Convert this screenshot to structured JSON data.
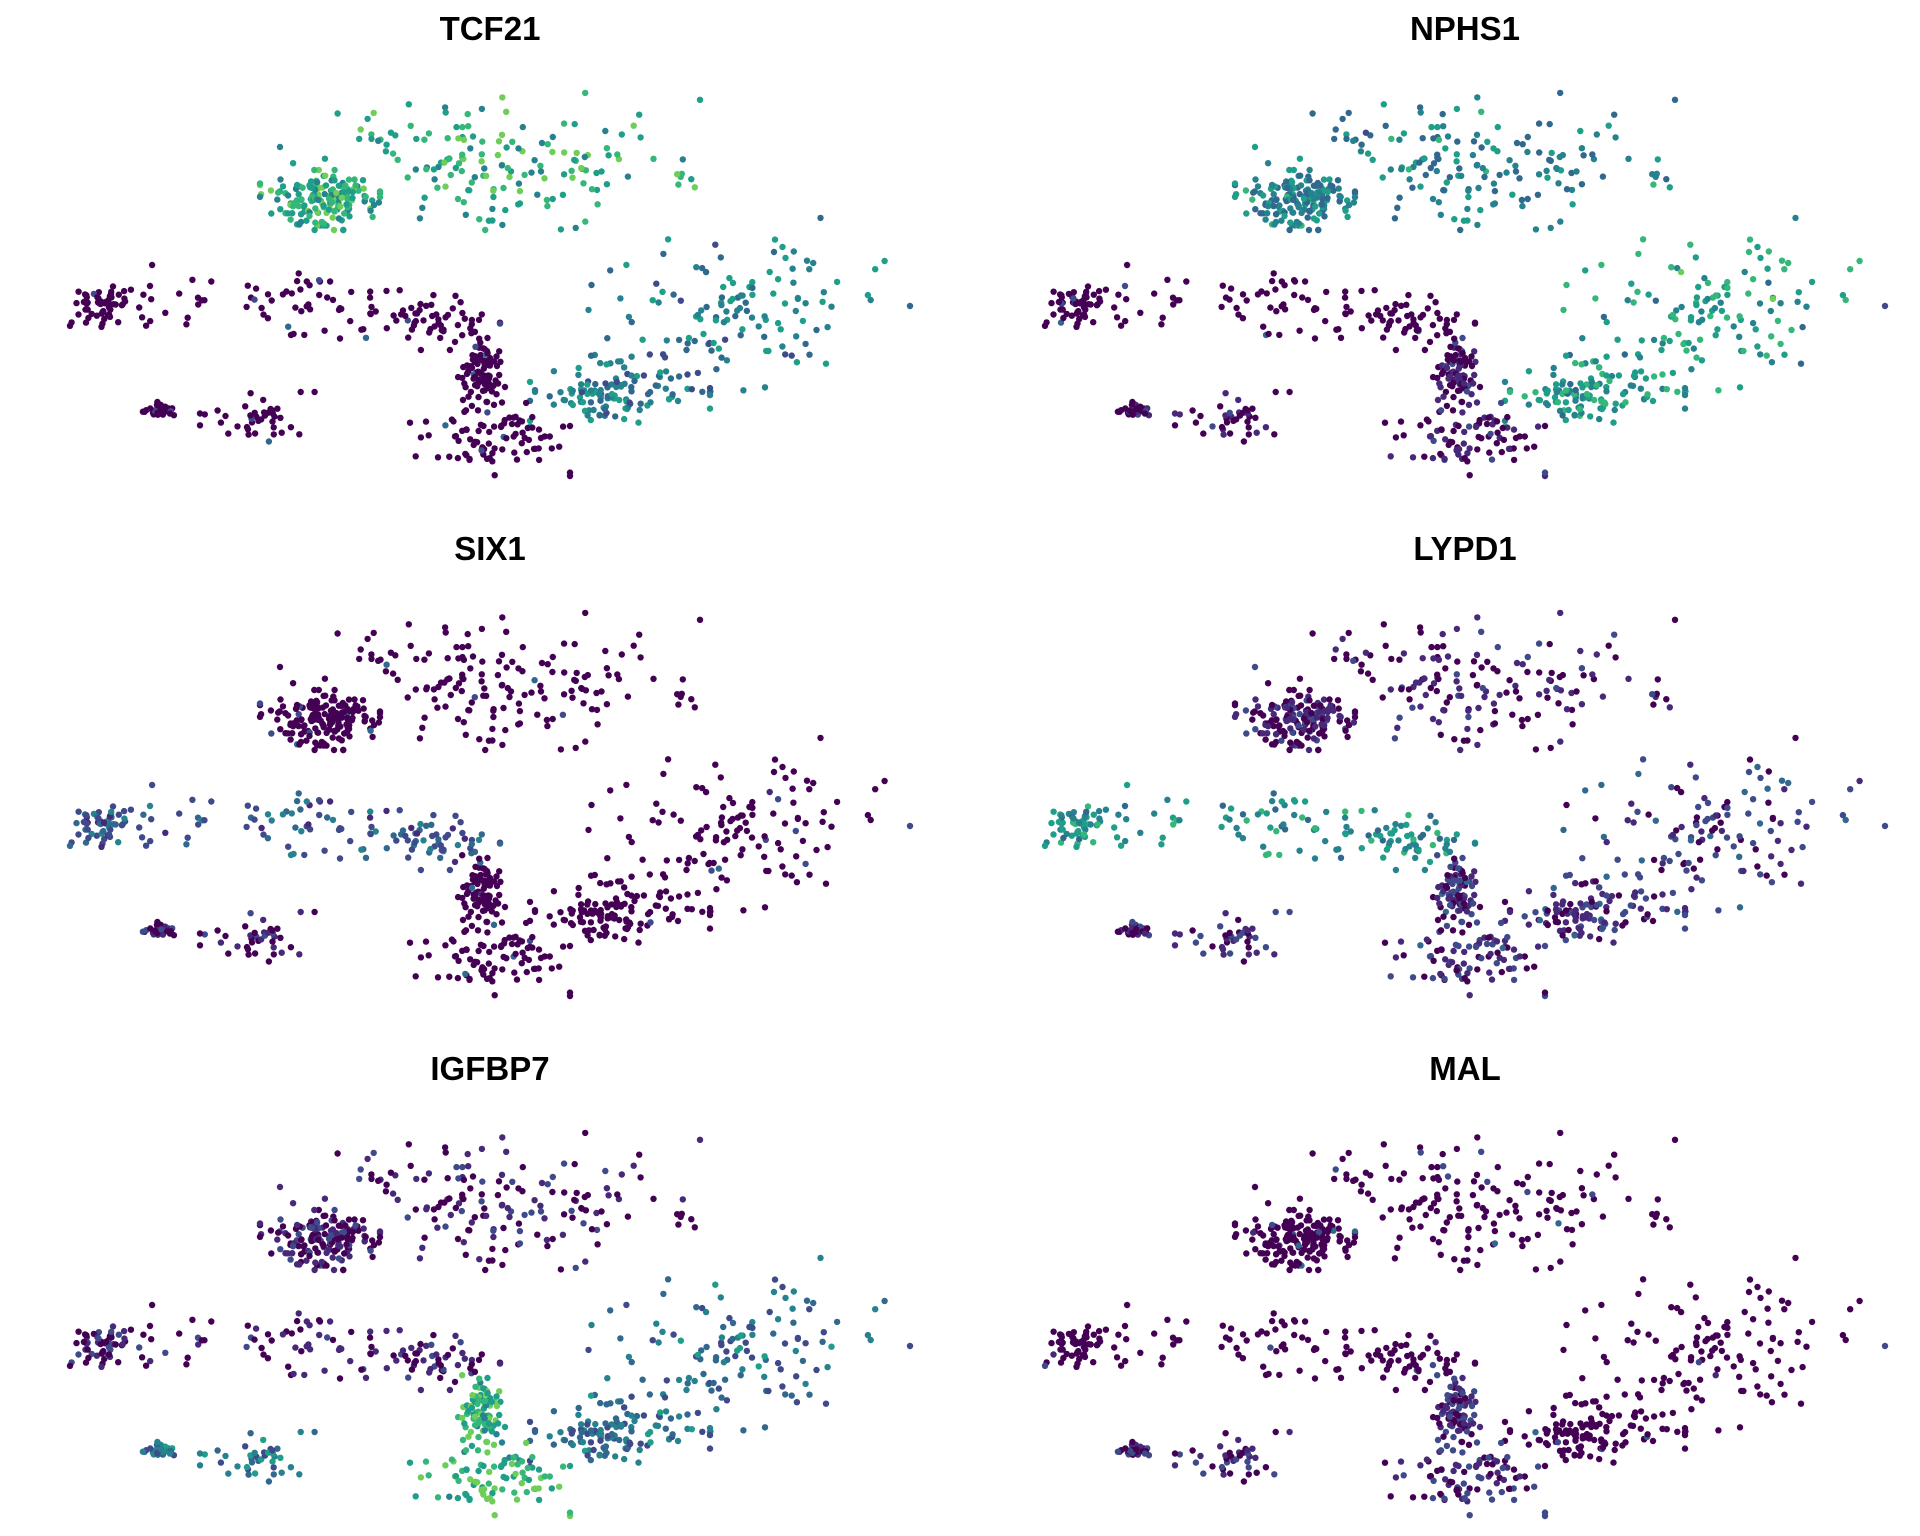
{
  "chart_data": [
    {
      "type": "scatter",
      "title": "TCF21",
      "xlabel": "",
      "ylabel": "",
      "grid": false,
      "legend": "none",
      "colormap": "viridis",
      "color_value_range": [
        0,
        1
      ],
      "regions": [
        {
          "name": "top",
          "value": 0.62,
          "n": 330
        },
        {
          "name": "right",
          "value": 0.42,
          "n": 250
        },
        {
          "name": "left",
          "value": 0.0,
          "n": 180
        },
        {
          "name": "bottom-left",
          "value": 0.0,
          "n": 80
        },
        {
          "name": "bottom-center",
          "value": 0.0,
          "n": 180
        }
      ]
    },
    {
      "type": "scatter",
      "title": "NPHS1",
      "xlabel": "",
      "ylabel": "",
      "grid": false,
      "legend": "none",
      "colormap": "viridis",
      "color_value_range": [
        0,
        1
      ],
      "regions": [
        {
          "name": "top",
          "value": 0.45,
          "n": 330
        },
        {
          "name": "right",
          "value": 0.55,
          "n": 250
        },
        {
          "name": "left",
          "value": 0.0,
          "n": 180
        },
        {
          "name": "bottom-left",
          "value": 0.02,
          "n": 80
        },
        {
          "name": "bottom-center",
          "value": 0.05,
          "n": 180
        }
      ]
    },
    {
      "type": "scatter",
      "title": "SIX1",
      "xlabel": "",
      "ylabel": "",
      "grid": false,
      "legend": "none",
      "colormap": "viridis",
      "color_value_range": [
        0,
        1
      ],
      "regions": [
        {
          "name": "top",
          "value": 0.0,
          "n": 330
        },
        {
          "name": "right",
          "value": 0.0,
          "n": 250
        },
        {
          "name": "left",
          "value": 0.3,
          "n": 180
        },
        {
          "name": "bottom-left",
          "value": 0.02,
          "n": 80
        },
        {
          "name": "bottom-center",
          "value": 0.0,
          "n": 180
        }
      ]
    },
    {
      "type": "scatter",
      "title": "LYPD1",
      "xlabel": "",
      "ylabel": "",
      "grid": false,
      "legend": "none",
      "colormap": "viridis",
      "color_value_range": [
        0,
        1
      ],
      "regions": [
        {
          "name": "top",
          "value": 0.05,
          "n": 330
        },
        {
          "name": "right",
          "value": 0.15,
          "n": 250
        },
        {
          "name": "left",
          "value": 0.5,
          "n": 180
        },
        {
          "name": "bottom-left",
          "value": 0.1,
          "n": 80
        },
        {
          "name": "bottom-center",
          "value": 0.12,
          "n": 180
        }
      ]
    },
    {
      "type": "scatter",
      "title": "IGFBP7",
      "xlabel": "",
      "ylabel": "",
      "grid": false,
      "legend": "none",
      "colormap": "viridis",
      "color_value_range": [
        0,
        1
      ],
      "regions": [
        {
          "name": "top",
          "value": 0.05,
          "n": 330
        },
        {
          "name": "right",
          "value": 0.35,
          "n": 250
        },
        {
          "name": "left",
          "value": 0.05,
          "n": 180
        },
        {
          "name": "bottom-left",
          "value": 0.4,
          "n": 80
        },
        {
          "name": "bottom-center",
          "value": 0.65,
          "n": 180
        }
      ]
    },
    {
      "type": "scatter",
      "title": "MAL",
      "xlabel": "",
      "ylabel": "",
      "grid": false,
      "legend": "none",
      "colormap": "viridis",
      "color_value_range": [
        0,
        1
      ],
      "regions": [
        {
          "name": "top",
          "value": 0.0,
          "n": 330
        },
        {
          "name": "right",
          "value": 0.0,
          "n": 250
        },
        {
          "name": "left",
          "value": 0.0,
          "n": 180
        },
        {
          "name": "bottom-left",
          "value": 0.08,
          "n": 80
        },
        {
          "name": "bottom-center",
          "value": 0.1,
          "n": 180
        }
      ]
    }
  ]
}
